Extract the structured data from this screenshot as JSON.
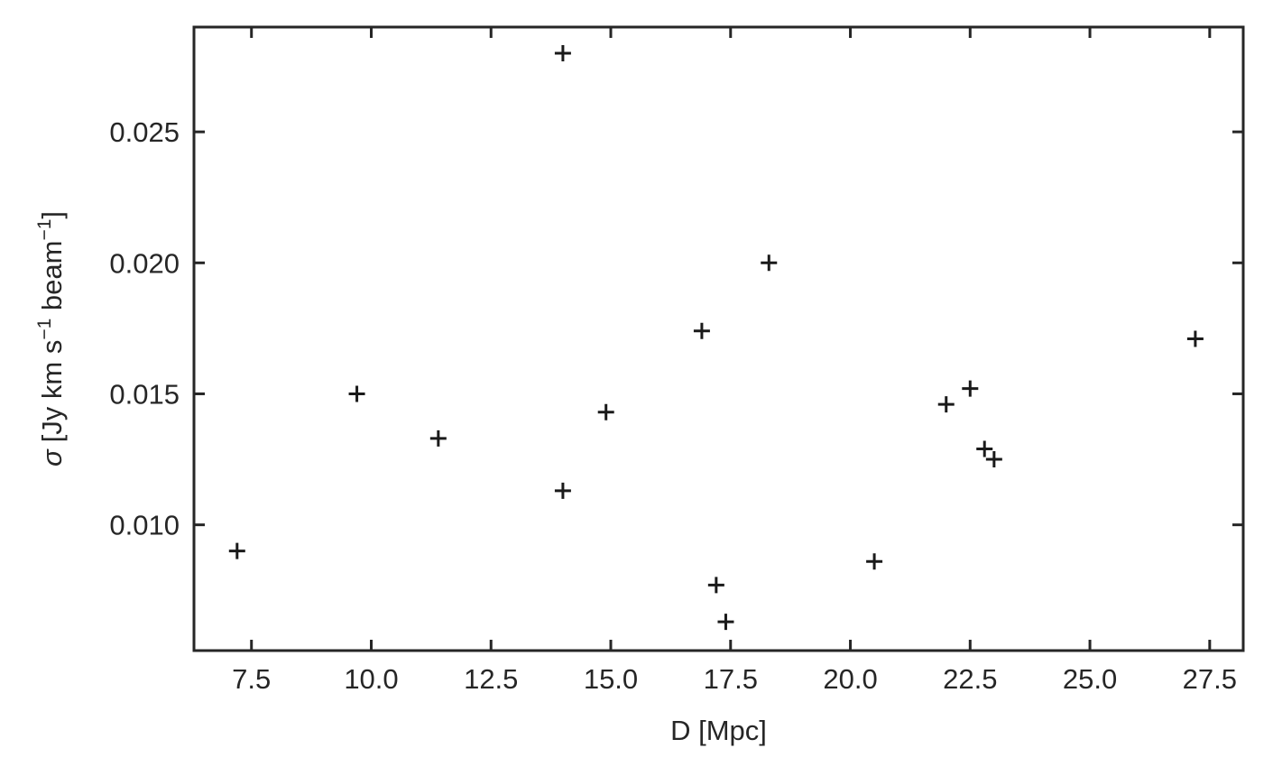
{
  "chart_data": {
    "type": "scatter",
    "marker": "+",
    "marker_color": "#1a1a1a",
    "axis_color": "#262626",
    "grid": false,
    "xlabel": "D [Mpc]",
    "ylabel": {
      "symbol": "σ",
      "text": "[Jy km s",
      "exp1": "−1",
      "mid": " beam",
      "exp2": "−1",
      "close": "]"
    },
    "xlim": [
      6.3,
      28.2
    ],
    "ylim": [
      0.0052,
      0.029
    ],
    "x_ticks": [
      7.5,
      10.0,
      12.5,
      15.0,
      17.5,
      20.0,
      22.5,
      25.0,
      27.5
    ],
    "x_tick_labels": [
      "7.5",
      "10.0",
      "12.5",
      "15.0",
      "17.5",
      "20.0",
      "22.5",
      "25.0",
      "27.5"
    ],
    "y_ticks": [
      0.01,
      0.015,
      0.02,
      0.025
    ],
    "y_tick_labels": [
      "0.010",
      "0.015",
      "0.020",
      "0.025"
    ],
    "points": [
      {
        "x": 7.2,
        "y": 0.009
      },
      {
        "x": 9.7,
        "y": 0.015
      },
      {
        "x": 11.4,
        "y": 0.0133
      },
      {
        "x": 14.0,
        "y": 0.028
      },
      {
        "x": 14.0,
        "y": 0.0113
      },
      {
        "x": 14.9,
        "y": 0.0143
      },
      {
        "x": 16.9,
        "y": 0.0174
      },
      {
        "x": 17.2,
        "y": 0.0077
      },
      {
        "x": 17.4,
        "y": 0.0063
      },
      {
        "x": 18.3,
        "y": 0.02
      },
      {
        "x": 20.5,
        "y": 0.0086
      },
      {
        "x": 22.0,
        "y": 0.0146
      },
      {
        "x": 22.5,
        "y": 0.0152
      },
      {
        "x": 22.8,
        "y": 0.0129
      },
      {
        "x": 23.0,
        "y": 0.0125
      },
      {
        "x": 27.2,
        "y": 0.0171
      }
    ]
  }
}
